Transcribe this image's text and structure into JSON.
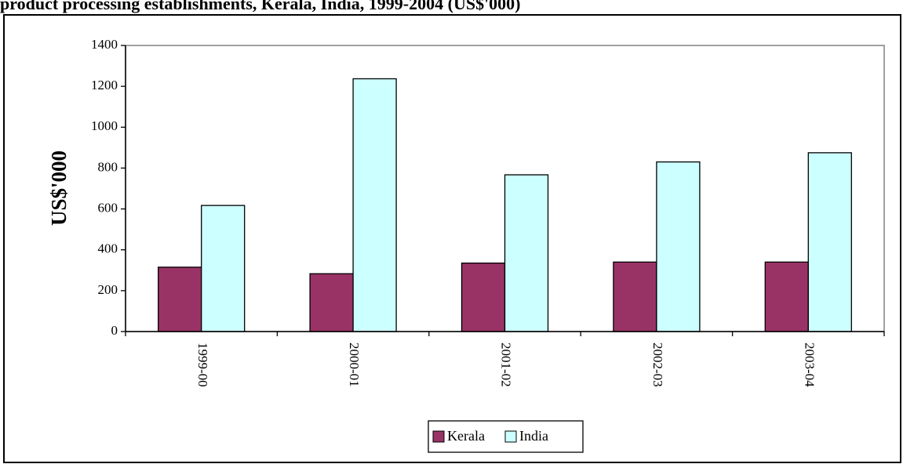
{
  "page": {
    "title": "product processing establishments, Kerala, India, 1999-2004 (US$'000)"
  },
  "chart_data": {
    "type": "bar",
    "title": "",
    "xlabel": "",
    "ylabel": "US$'000",
    "categories": [
      "1999-00",
      "2000-01",
      "2001-02",
      "2002-03",
      "2003-04"
    ],
    "series": [
      {
        "name": "Kerala",
        "color": "#993366",
        "values": [
          315,
          283,
          335,
          340,
          340
        ]
      },
      {
        "name": "India",
        "color": "#ccffff",
        "values": [
          617,
          1237,
          767,
          830,
          875
        ]
      }
    ],
    "ylim": [
      0,
      1400
    ],
    "yticks": [
      0,
      200,
      400,
      600,
      800,
      1000,
      1200,
      1400
    ],
    "grid": false,
    "legend_position": "bottom",
    "plot_background": "#ffffff",
    "plot_border_color": "#808080"
  }
}
